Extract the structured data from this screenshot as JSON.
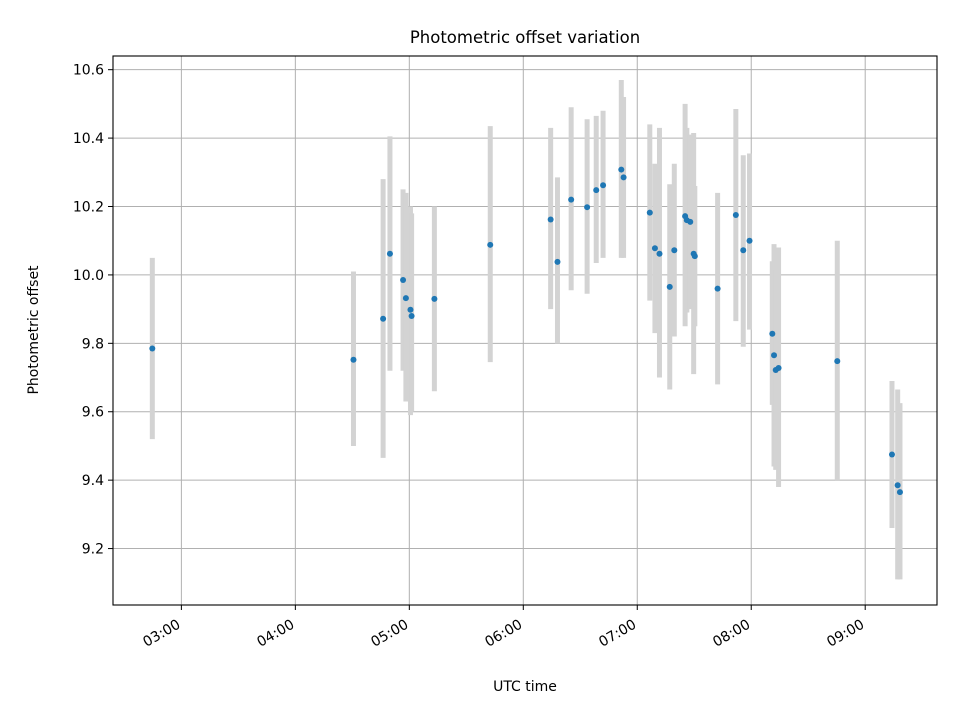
{
  "chart_data": {
    "type": "scatter",
    "title": "Photometric offset variation",
    "xlabel": "UTC time",
    "ylabel": "Photometric offset",
    "x_unit": "hours",
    "xlim": [
      2.4,
      9.63
    ],
    "ylim": [
      9.035,
      10.64
    ],
    "xticks": [
      {
        "value": 3,
        "label": "03:00"
      },
      {
        "value": 4,
        "label": "04:00"
      },
      {
        "value": 5,
        "label": "05:00"
      },
      {
        "value": 6,
        "label": "06:00"
      },
      {
        "value": 7,
        "label": "07:00"
      },
      {
        "value": 8,
        "label": "08:00"
      },
      {
        "value": 9,
        "label": "09:00"
      }
    ],
    "yticks": [
      {
        "value": 9.2,
        "label": "9.2"
      },
      {
        "value": 9.4,
        "label": "9.4"
      },
      {
        "value": 9.6,
        "label": "9.6"
      },
      {
        "value": 9.8,
        "label": "9.8"
      },
      {
        "value": 10.0,
        "label": "10.0"
      },
      {
        "value": 10.2,
        "label": "10.2"
      },
      {
        "value": 10.4,
        "label": "10.4"
      },
      {
        "value": 10.6,
        "label": "10.6"
      }
    ],
    "grid": true,
    "colors": {
      "marker": "#1f77b4",
      "errorbar": "#d3d3d3",
      "grid": "#b0b0b0"
    },
    "points": [
      {
        "x": 2.745,
        "y": 9.785,
        "low": 9.52,
        "high": 10.05
      },
      {
        "x": 4.51,
        "y": 9.752,
        "low": 9.5,
        "high": 10.01
      },
      {
        "x": 4.77,
        "y": 9.872,
        "low": 9.465,
        "high": 10.28
      },
      {
        "x": 4.83,
        "y": 10.062,
        "low": 9.72,
        "high": 10.405
      },
      {
        "x": 4.945,
        "y": 9.985,
        "low": 9.72,
        "high": 10.25
      },
      {
        "x": 4.97,
        "y": 9.932,
        "low": 9.63,
        "high": 10.24
      },
      {
        "x": 5.01,
        "y": 9.898,
        "low": 9.59,
        "high": 10.2
      },
      {
        "x": 5.02,
        "y": 9.88,
        "low": 9.6,
        "high": 10.18
      },
      {
        "x": 5.22,
        "y": 9.93,
        "low": 9.66,
        "high": 10.2
      },
      {
        "x": 5.71,
        "y": 10.088,
        "low": 9.745,
        "high": 10.435
      },
      {
        "x": 6.24,
        "y": 10.162,
        "low": 9.9,
        "high": 10.43
      },
      {
        "x": 6.3,
        "y": 10.038,
        "low": 9.8,
        "high": 10.285
      },
      {
        "x": 6.42,
        "y": 10.22,
        "low": 9.955,
        "high": 10.49
      },
      {
        "x": 6.56,
        "y": 10.198,
        "low": 9.945,
        "high": 10.455
      },
      {
        "x": 6.64,
        "y": 10.248,
        "low": 10.035,
        "high": 10.465
      },
      {
        "x": 6.7,
        "y": 10.262,
        "low": 10.05,
        "high": 10.48
      },
      {
        "x": 6.86,
        "y": 10.308,
        "low": 10.05,
        "high": 10.57
      },
      {
        "x": 6.88,
        "y": 10.285,
        "low": 10.05,
        "high": 10.52
      },
      {
        "x": 7.11,
        "y": 10.182,
        "low": 9.925,
        "high": 10.44
      },
      {
        "x": 7.155,
        "y": 10.078,
        "low": 9.83,
        "high": 10.325
      },
      {
        "x": 7.195,
        "y": 10.062,
        "low": 9.7,
        "high": 10.43
      },
      {
        "x": 7.285,
        "y": 9.965,
        "low": 9.665,
        "high": 10.265
      },
      {
        "x": 7.325,
        "y": 10.072,
        "low": 9.82,
        "high": 10.325
      },
      {
        "x": 7.42,
        "y": 10.172,
        "low": 9.85,
        "high": 10.5
      },
      {
        "x": 7.435,
        "y": 10.16,
        "low": 9.89,
        "high": 10.43
      },
      {
        "x": 7.465,
        "y": 10.155,
        "low": 9.9,
        "high": 10.41
      },
      {
        "x": 7.495,
        "y": 10.062,
        "low": 9.71,
        "high": 10.415
      },
      {
        "x": 7.505,
        "y": 10.055,
        "low": 9.85,
        "high": 10.26
      },
      {
        "x": 7.705,
        "y": 9.96,
        "low": 9.68,
        "high": 10.24
      },
      {
        "x": 7.865,
        "y": 10.175,
        "low": 9.865,
        "high": 10.485
      },
      {
        "x": 7.93,
        "y": 10.072,
        "low": 9.79,
        "high": 10.35
      },
      {
        "x": 7.985,
        "y": 10.1,
        "low": 9.84,
        "high": 10.355
      },
      {
        "x": 8.185,
        "y": 9.828,
        "low": 9.62,
        "high": 10.04
      },
      {
        "x": 8.2,
        "y": 9.765,
        "low": 9.44,
        "high": 10.09
      },
      {
        "x": 8.215,
        "y": 9.722,
        "low": 9.43,
        "high": 10.015
      },
      {
        "x": 8.24,
        "y": 9.728,
        "low": 9.38,
        "high": 10.08
      },
      {
        "x": 8.755,
        "y": 9.748,
        "low": 9.4,
        "high": 10.1
      },
      {
        "x": 9.235,
        "y": 9.475,
        "low": 9.26,
        "high": 9.69
      },
      {
        "x": 9.285,
        "y": 9.385,
        "low": 9.11,
        "high": 9.665
      },
      {
        "x": 9.305,
        "y": 9.365,
        "low": 9.11,
        "high": 9.625
      }
    ]
  }
}
